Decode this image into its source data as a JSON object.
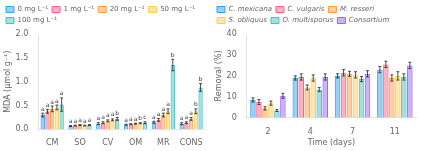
{
  "chart_data": [
    {
      "type": "bar",
      "categories": [
        "CM",
        "SO",
        "CV",
        "OM",
        "MR",
        "CONS"
      ],
      "series": [
        {
          "name": "0 mg L⁻¹",
          "values": [
            0.3,
            0.07,
            0.12,
            0.1,
            0.15,
            0.12
          ],
          "errors": [
            0.04,
            0.01,
            0.02,
            0.01,
            0.02,
            0.02
          ],
          "letters": [
            "a",
            "a",
            "a",
            "a",
            "a",
            "a"
          ]
        },
        {
          "name": "1 mg L⁻¹",
          "values": [
            0.38,
            0.08,
            0.14,
            0.11,
            0.2,
            0.14
          ],
          "errors": [
            0.04,
            0.01,
            0.02,
            0.01,
            0.03,
            0.02
          ],
          "letters": [
            "a",
            "a",
            "a",
            "a",
            "a",
            "a"
          ]
        },
        {
          "name": "20 mg L⁻¹",
          "values": [
            0.43,
            0.09,
            0.18,
            0.12,
            0.3,
            0.22
          ],
          "errors": [
            0.06,
            0.01,
            0.02,
            0.01,
            0.04,
            0.03
          ],
          "letters": [
            "a",
            "a",
            "a",
            "a",
            "a",
            "a"
          ]
        },
        {
          "name": "50 mg L⁻¹",
          "values": [
            0.46,
            0.08,
            0.2,
            0.13,
            0.38,
            0.38
          ],
          "errors": [
            0.05,
            0.01,
            0.02,
            0.01,
            0.05,
            0.05
          ],
          "letters": [
            "a",
            "a",
            "a",
            "b",
            "a",
            "b"
          ]
        },
        {
          "name": "100 mg L⁻¹",
          "values": [
            0.52,
            0.09,
            0.22,
            0.14,
            1.35,
            0.88
          ],
          "errors": [
            0.14,
            0.01,
            0.03,
            0.02,
            0.12,
            0.08
          ],
          "letters": [
            "a",
            "a",
            "b",
            "c",
            "b",
            "b"
          ]
        }
      ],
      "ylabel": "MDA (μmol g⁻¹)",
      "ylim": [
        0,
        2.0
      ],
      "yticks": [
        {
          "value": 0.0,
          "label": "0.0"
        },
        0.5,
        {
          "value": 1.0,
          "label": "1.0"
        },
        1.5,
        {
          "value": 2.0,
          "label": "2.0"
        }
      ],
      "grid": false,
      "legend": "upper left"
    },
    {
      "type": "bar",
      "categories": [
        "2",
        "4",
        "7",
        "11"
      ],
      "series": [
        {
          "name": "C. mexicana",
          "values": [
            8.5,
            19.0,
            20.0,
            23.0
          ],
          "errors": [
            1.0,
            1.0,
            1.0,
            1.5
          ]
        },
        {
          "name": "C. vulgaris",
          "values": [
            7.5,
            19.5,
            21.5,
            25.5
          ],
          "errors": [
            1.2,
            1.5,
            1.5,
            1.5
          ]
        },
        {
          "name": "M. resseri",
          "values": [
            4.5,
            14.5,
            21.0,
            19.0
          ],
          "errors": [
            0.8,
            1.2,
            1.2,
            1.5
          ]
        },
        {
          "name": "S. obliquus",
          "values": [
            7.0,
            19.0,
            20.5,
            20.0
          ],
          "errors": [
            1.0,
            1.5,
            1.5,
            2.0
          ]
        },
        {
          "name": "O. multisporus",
          "values": [
            3.5,
            13.5,
            18.5,
            19.5
          ],
          "errors": [
            0.5,
            1.0,
            1.2,
            1.5
          ]
        },
        {
          "name": "Consortium",
          "values": [
            10.5,
            19.5,
            21.0,
            25.0
          ],
          "errors": [
            1.2,
            1.5,
            1.5,
            1.5
          ]
        }
      ],
      "xlabel": "Time (days)",
      "ylabel": "Removal (%)",
      "ylim": [
        0,
        40
      ],
      "yticks": [
        0,
        10,
        20,
        30,
        40
      ],
      "grid": false,
      "legend": "upper left"
    }
  ]
}
